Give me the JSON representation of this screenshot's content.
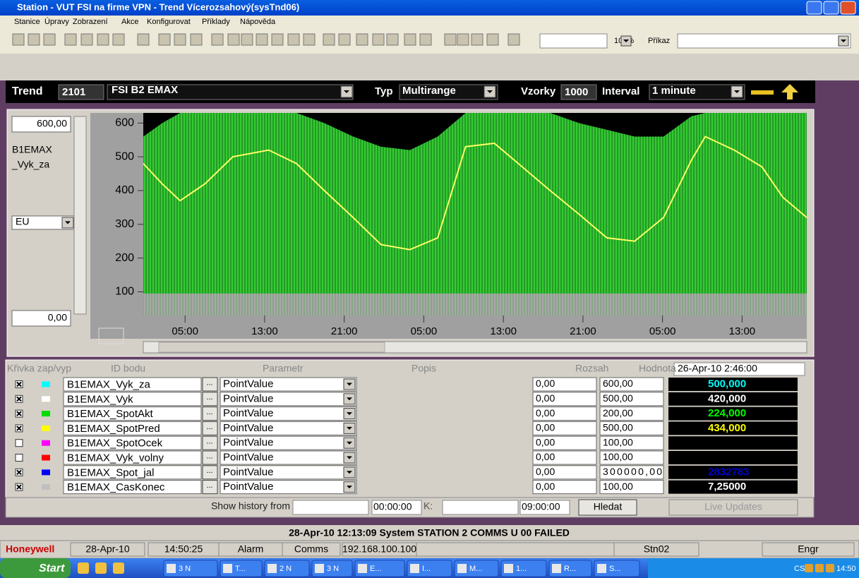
{
  "title_bar": {
    "title": "Station - VUT FSI na firme VPN - Trend Vícerozsahový(sysTnd06)"
  },
  "menu": [
    "Stanice",
    "Úpravy",
    "Zobrazení",
    "Akce",
    "Konfigurovat",
    "Příklady",
    "Nápověda"
  ],
  "toolbar": {
    "zoom": "100%",
    "command_label": "Příkaz"
  },
  "trend_header": {
    "trend_label": "Trend",
    "trend_number": "2101",
    "trend_name": "FSI B2 EMAX",
    "type_label": "Typ",
    "type": "Multirange",
    "samples_label": "Vzorky",
    "samples": "1000",
    "interval_label": "Interval",
    "interval": "1 minute"
  },
  "left_panel": {
    "max": "600,00",
    "label_lines": [
      "B1EMAX",
      "_Vyk_za"
    ],
    "units": "EU",
    "min": "0,00"
  },
  "chart_data": {
    "type": "area",
    "x": [
      0.8,
      2.7,
      4.5,
      7,
      9.8,
      13.4,
      16.2,
      19,
      21.9,
      24.7,
      27.6,
      30.4,
      33.2,
      36.1,
      38.9,
      41.7,
      44.6,
      47.4,
      50.2,
      53.1,
      55.9,
      57.3,
      60.2,
      63,
      65.1,
      67.5
    ],
    "series": [
      {
        "color": "#33cc33",
        "style": "area",
        "values": [
          560,
          600,
          630,
          630,
          630,
          630,
          630,
          600,
          560,
          530,
          520,
          560,
          630,
          630,
          630,
          630,
          600,
          580,
          560,
          560,
          620,
          630,
          630,
          630,
          630,
          630
        ]
      },
      {
        "color": "#a8a8a8",
        "style": "area",
        "values": [
          95,
          95,
          95,
          95,
          95,
          95,
          95,
          95,
          95,
          95,
          95,
          95,
          95,
          95,
          95,
          95,
          95,
          95,
          95,
          95,
          95,
          95,
          95,
          95,
          95,
          95
        ]
      },
      {
        "color": "#ffff66",
        "style": "line",
        "values": [
          480,
          420,
          370,
          420,
          500,
          520,
          480,
          400,
          320,
          240,
          225,
          260,
          530,
          540,
          470,
          400,
          330,
          260,
          250,
          320,
          490,
          560,
          520,
          470,
          380,
          320
        ]
      }
    ],
    "xlim": [
      0.8,
      67.5
    ],
    "xticks": [
      {
        "value": 5,
        "label": "05:00"
      },
      {
        "value": 13,
        "label": "13:00"
      },
      {
        "value": 21,
        "label": "21:00"
      },
      {
        "value": 29,
        "label": "05:00"
      },
      {
        "value": 37,
        "label": "13:00"
      },
      {
        "value": 45,
        "label": "21:00"
      },
      {
        "value": 53,
        "label": "05:00"
      },
      {
        "value": 61,
        "label": "13:00"
      }
    ],
    "ylim": [
      30,
      630
    ],
    "yticks": [
      100,
      200,
      300,
      400,
      500,
      600
    ],
    "grid": false
  },
  "table": {
    "headers": [
      "Křivka zap/vyp",
      "ID bodu",
      "Parametr",
      "Popis",
      "Rozsah",
      "Hodnota"
    ],
    "timestamp": "26-Apr-10 2:46:00",
    "browse_label": "...",
    "rows": [
      {
        "checked": true,
        "color": "#00ffff",
        "id": "B1EMAX_Vyk_za",
        "parameter": "PointValue",
        "min": "0,00",
        "max": "600,00",
        "value": "500,000",
        "value_color": "#00ffff"
      },
      {
        "checked": true,
        "color": "#ffffff",
        "id": "B1EMAX_Vyk",
        "parameter": "PointValue",
        "min": "0,00",
        "max": "500,00",
        "value": "420,000",
        "value_color": "#ffffff"
      },
      {
        "checked": true,
        "color": "#00dd00",
        "id": "B1EMAX_SpotAkt",
        "parameter": "PointValue",
        "min": "0,00",
        "max": "200,00",
        "value": "224,000",
        "value_color": "#00ff00"
      },
      {
        "checked": true,
        "color": "#ffff00",
        "id": "B1EMAX_SpotPred",
        "parameter": "PointValue",
        "min": "0,00",
        "max": "500,00",
        "value": "434,000",
        "value_color": "#ffff00"
      },
      {
        "checked": false,
        "color": "#ff00ff",
        "id": "B1EMAX_SpotOcek",
        "parameter": "PointValue",
        "min": "0,00",
        "max": "100,00"
      },
      {
        "checked": false,
        "color": "#ff0000",
        "id": "B1EMAX_Vyk_volny",
        "parameter": "PointValue",
        "min": "0,00",
        "max": "100,00"
      },
      {
        "checked": true,
        "color": "#0000ff",
        "id": "B1EMAX_Spot_jal",
        "parameter": "PointValue",
        "min": "0,00",
        "max": "300000,00",
        "value": "2832783",
        "value_color": "#0000cc"
      },
      {
        "checked": true,
        "color": "#c0c0c0",
        "id": "B1EMAX_CasKonec",
        "parameter": "PointValue",
        "min": "0,00",
        "max": "100,00",
        "value": "7,25000",
        "value_color": "#ffffff"
      }
    ]
  },
  "history": {
    "from_label": "Show history from",
    "from_time": "00:00:00",
    "to_label": "K:",
    "to_time": "09:00:00",
    "search": "Hledat",
    "live": "Live Updates"
  },
  "status_message": "28-Apr-10 12:13:09 System STATION 2 COMMS U 00 FAILED",
  "status_bar": [
    "Honeywell",
    "28-Apr-10",
    "14:50:25",
    "Alarm",
    "Comms",
    "192.168.100.100",
    "Stn02",
    "Engr"
  ],
  "taskbar": {
    "start": "Start",
    "tasks": [
      "3 N",
      "T...",
      "2 N",
      "3 N",
      "E...",
      "I...",
      "M...",
      "1...",
      "R...",
      "S..."
    ],
    "tray_lang": "CS",
    "clock": "14:50"
  }
}
